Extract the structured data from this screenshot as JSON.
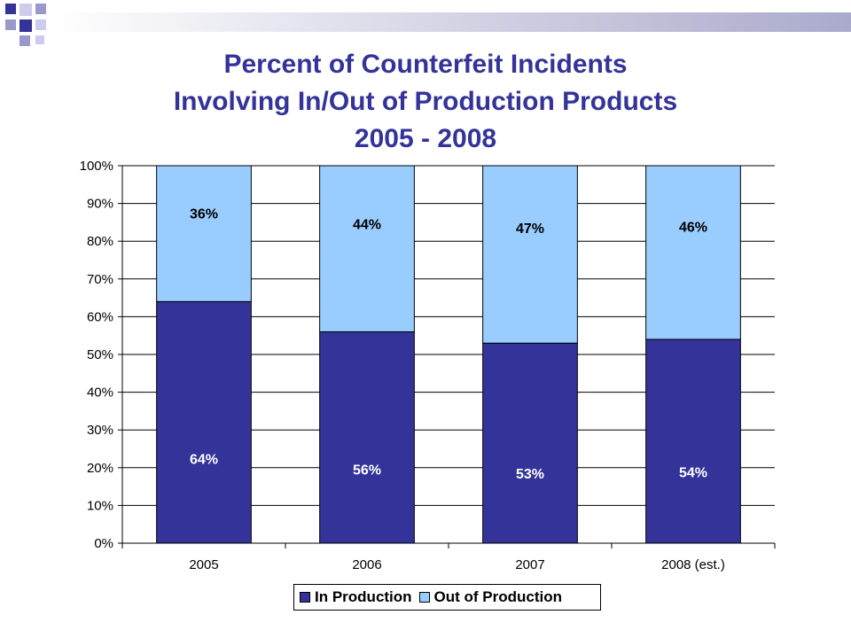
{
  "title_lines": [
    "Percent of Counterfeit Incidents",
    "Involving In/Out of Production Products",
    "2005 - 2008"
  ],
  "colors": {
    "in_production": "#333399",
    "out_of_production": "#99ccff",
    "title": "#333399",
    "deco_squares": "#333399",
    "deco_squares_light": "#9999cc"
  },
  "chart_data": {
    "type": "bar",
    "stacked": true,
    "title": "Percent of Counterfeit Incidents Involving In/Out of Production Products 2005 - 2008",
    "categories": [
      "2005",
      "2006",
      "2007",
      "2008 (est.)"
    ],
    "series": [
      {
        "name": "In Production",
        "values": [
          64,
          56,
          53,
          54
        ],
        "labels": [
          "64%",
          "56%",
          "53%",
          "54%"
        ]
      },
      {
        "name": "Out of Production",
        "values": [
          36,
          44,
          47,
          46
        ],
        "labels": [
          "36%",
          "44%",
          "47%",
          "46%"
        ]
      }
    ],
    "y_ticks": [
      "0%",
      "10%",
      "20%",
      "30%",
      "40%",
      "50%",
      "60%",
      "70%",
      "80%",
      "90%",
      "100%"
    ],
    "ylim": [
      0,
      100
    ],
    "grid": true,
    "legend_position": "bottom"
  }
}
